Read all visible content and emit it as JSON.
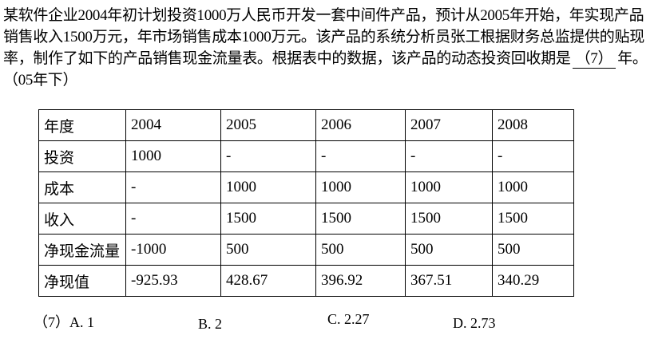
{
  "question": {
    "lines": [
      "某软件企业2004年初计划投资1000万人民币开发一套中间件产品，预计从2005年开始，年实现产品",
      "销售收入1500万元，年市场销售成本1000万元。该产品的系统分析员张工根据财务总监提供的贴现",
      "率，制作了如下的产品销售现金流量表。根据表中的数据，该产品的动态投资回收期是"
    ],
    "blank": "（7）",
    "line_end": "年。",
    "source": "（05年下）"
  },
  "table": {
    "rows": [
      [
        "年度",
        "2004",
        "2005",
        "2006",
        "2007",
        "2008"
      ],
      [
        "投资",
        "1000",
        "-",
        "-",
        "-",
        "-"
      ],
      [
        "成本",
        "-",
        "1000",
        "1000",
        "1000",
        "1000"
      ],
      [
        "收入",
        "-",
        "1500",
        "1500",
        "1500",
        "1500"
      ],
      [
        "净现金流量",
        "-1000",
        "500",
        "500",
        "500",
        "500"
      ],
      [
        "净现值",
        "-925.93",
        "428.67",
        "396.92",
        "367.51",
        "340.29"
      ]
    ]
  },
  "options": {
    "number": "（7）",
    "items": [
      "A. 1",
      "B. 2",
      "C. 2.27",
      "D. 2.73"
    ]
  }
}
